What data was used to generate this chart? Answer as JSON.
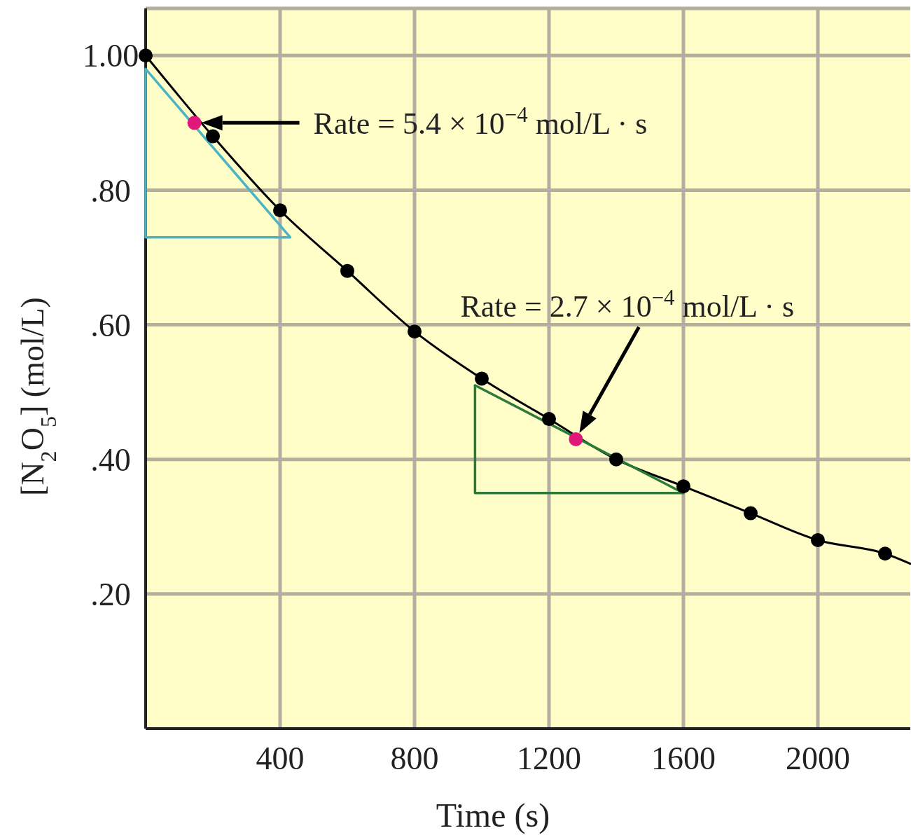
{
  "chart_data": {
    "type": "line",
    "xlabel": "Time (s)",
    "ylabel": "[N$_{2}$O$_{5}$] (mol/L)",
    "xlim": [
      0,
      2275
    ],
    "ylim": [
      0,
      1.07
    ],
    "xticks": [
      400,
      800,
      1200,
      1600,
      2000
    ],
    "yticks": [
      {
        "value": 0.2,
        "label": ".20"
      },
      {
        "value": 0.4,
        "label": ".40"
      },
      {
        "value": 0.6,
        "label": ".60"
      },
      {
        "value": 0.8,
        "label": ".80"
      },
      {
        "value": 1,
        "label": "1.00"
      }
    ],
    "grid": true,
    "series": [
      {
        "color": "#000000",
        "marker": "none",
        "line_style": "solid",
        "x": [
          0,
          200,
          400,
          600,
          800,
          1000,
          1200,
          1400,
          1600,
          1800,
          2000,
          2200,
          2275
        ],
        "values": [
          1.0,
          0.88,
          0.77,
          0.68,
          0.59,
          0.52,
          0.46,
          0.4,
          0.36,
          0.32,
          0.28,
          0.26,
          0.245
        ]
      },
      {
        "color": "#4ab4c4",
        "marker": "none",
        "line_style": "solid",
        "x": [
          0,
          430
        ],
        "values": [
          0.98,
          0.73
        ]
      },
      {
        "color": "#2a7a3a",
        "marker": "none",
        "line_style": "solid",
        "x": [
          980,
          1600
        ],
        "values": [
          0.51,
          0.35
        ]
      },
      {
        "type": "scatter",
        "color": "#000000",
        "marker": "circle",
        "x": [
          0,
          200,
          400,
          600,
          800,
          1000,
          1200,
          1400,
          1600,
          1800,
          2000,
          2200
        ],
        "values": [
          1.0,
          0.88,
          0.77,
          0.68,
          0.59,
          0.52,
          0.46,
          0.4,
          0.36,
          0.32,
          0.28,
          0.26
        ]
      },
      {
        "type": "scatter",
        "color": "#e0187a",
        "marker": "circle",
        "x": [
          145,
          1280
        ],
        "values": [
          0.9,
          0.43
        ]
      }
    ],
    "annotations": [
      "Rate = 5.4 × 10$^{−4}$ mol/L · s",
      "Rate = 2.7 × 10$^{−4}$ mol/L · s"
    ]
  }
}
